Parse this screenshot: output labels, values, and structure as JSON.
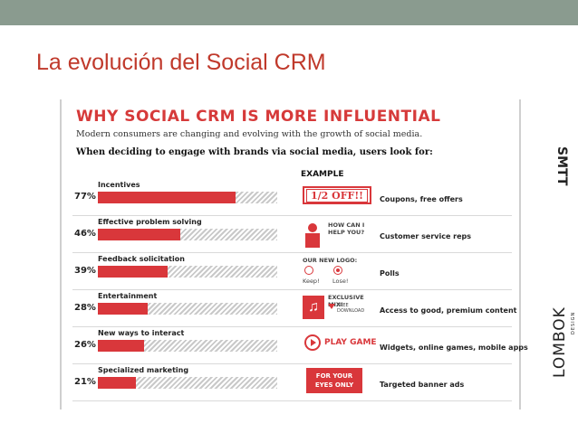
{
  "slide": {
    "title": "La evolución del Social CRM"
  },
  "infographic": {
    "headline": "WHY SOCIAL CRM IS MORE INFLUENTIAL",
    "subtitle": "Modern consumers are changing and evolving with the growth of social media.",
    "question": "When deciding to engage with brands via social media, users look for:",
    "example_header": "EXAMPLE",
    "rows": [
      {
        "label": "Incentives",
        "percent": "77%",
        "value": 0.77,
        "description": "Coupons, free offers",
        "example": "coupon",
        "example_text": "1/2 OFF!!"
      },
      {
        "label": "Effective problem solving",
        "percent": "46%",
        "value": 0.46,
        "description": "Customer service reps",
        "example": "person",
        "example_text": "HOW CAN I\nHELP YOU?"
      },
      {
        "label": "Feedback solicitation",
        "percent": "39%",
        "value": 0.39,
        "description": "Polls",
        "example": "poll",
        "example_text": "OUR NEW LOGO:",
        "option_keep": "Keep!",
        "option_lose": "Lose!"
      },
      {
        "label": "Entertainment",
        "percent": "28%",
        "value": 0.28,
        "description": "Access to good, premium content",
        "example": "music",
        "example_text": "EXCLUSIVE MIX!",
        "example_sub": "FREE\nDOWNLOAD"
      },
      {
        "label": "New ways to interact",
        "percent": "26%",
        "value": 0.26,
        "description": "Widgets, online games, mobile apps",
        "example": "game",
        "example_text": "PLAY GAME"
      },
      {
        "label": "Specialized marketing",
        "percent": "21%",
        "value": 0.21,
        "description": "Targeted banner ads",
        "example": "banner",
        "example_text": "FOR YOUR\nEYES ONLY"
      }
    ]
  },
  "logos": {
    "smtt": "SMTT",
    "lombok": "LOMBOK",
    "lombok_sub": "DESIGN"
  },
  "colors": {
    "accent": "#d9373b",
    "title": "#c0392b",
    "band": "#8a9b8f"
  }
}
